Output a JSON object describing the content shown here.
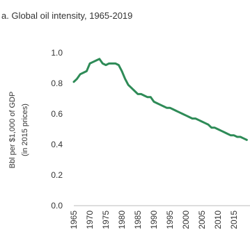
{
  "chart_data": {
    "type": "line",
    "title": "a. Global oil intensity, 1965-2019",
    "ylabel": "Bbl per $1,000 of GDP",
    "ylabel_sub": "(in 2015 prices)",
    "xlabel": "",
    "ylim": [
      0,
      1.0
    ],
    "xlim": [
      1965,
      2019
    ],
    "grid": false,
    "line_color": "#2e8b57",
    "y_ticks": [
      "1.0",
      "0.8",
      "0.6",
      "0.4",
      "0.2",
      "0.0"
    ],
    "x_ticks": [
      "1965",
      "1970",
      "1975",
      "1980",
      "1985",
      "1990",
      "1995",
      "2000",
      "2005",
      "2010",
      "2015"
    ],
    "series": [
      {
        "x": [
          1965,
          1966,
          1967,
          1968,
          1969,
          1970,
          1971,
          1972,
          1973,
          1974,
          1975,
          1976,
          1977,
          1978,
          1979,
          1980,
          1981,
          1982,
          1983,
          1984,
          1985,
          1986,
          1987,
          1988,
          1989,
          1990,
          1991,
          1992,
          1993,
          1994,
          1995,
          1996,
          1997,
          1998,
          1999,
          2000,
          2001,
          2002,
          2003,
          2004,
          2005,
          2006,
          2007,
          2008,
          2009,
          2010,
          2011,
          2012,
          2013,
          2014,
          2015,
          2016,
          2017,
          2018,
          2019
        ],
        "values": [
          0.81,
          0.83,
          0.86,
          0.87,
          0.88,
          0.93,
          0.94,
          0.95,
          0.96,
          0.93,
          0.92,
          0.93,
          0.93,
          0.93,
          0.92,
          0.88,
          0.83,
          0.79,
          0.77,
          0.75,
          0.73,
          0.73,
          0.72,
          0.71,
          0.71,
          0.68,
          0.67,
          0.66,
          0.65,
          0.64,
          0.64,
          0.63,
          0.62,
          0.61,
          0.6,
          0.59,
          0.58,
          0.57,
          0.57,
          0.56,
          0.55,
          0.54,
          0.53,
          0.51,
          0.51,
          0.5,
          0.49,
          0.48,
          0.47,
          0.46,
          0.46,
          0.45,
          0.45,
          0.44,
          0.43
        ]
      }
    ]
  }
}
